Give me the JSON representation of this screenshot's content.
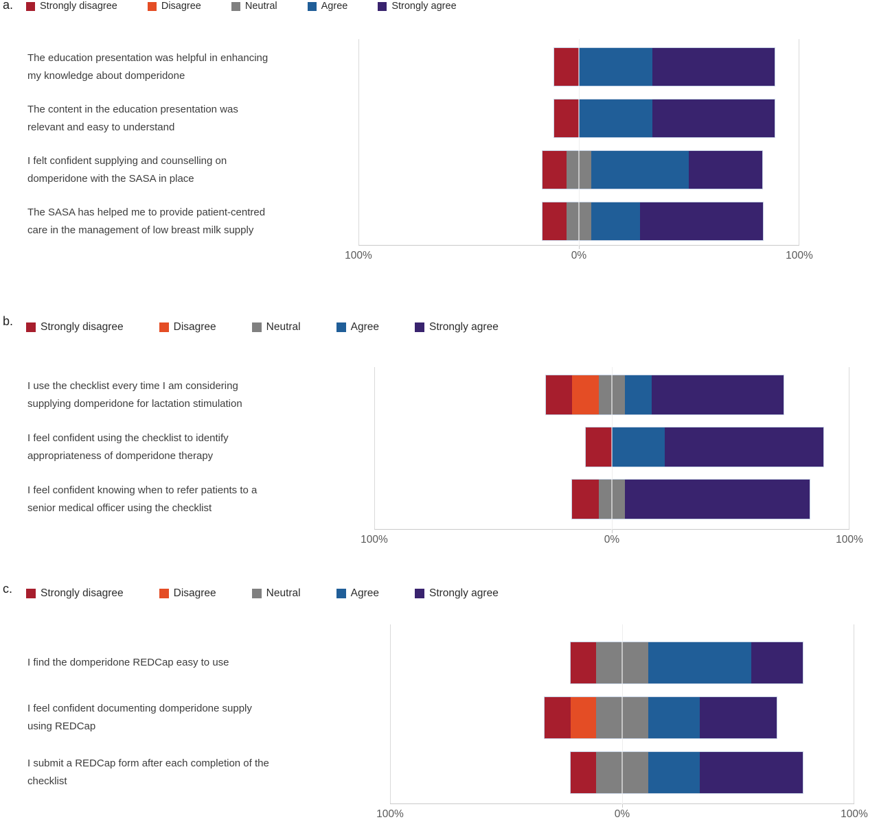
{
  "colors": {
    "strongly_disagree": "#A71E2D",
    "disagree": "#E44D25",
    "neutral": "#808080",
    "agree": "#205E98",
    "strongly_agree": "#39236E",
    "gridline": "#D9D9D9",
    "axis_line": "#C9C9C9",
    "axis_text": "#595959",
    "label_text": "#3D3D3D"
  },
  "chart_data": [
    {
      "type": "bar",
      "subtype": "diverging-stacked-likert",
      "panel_label": "a.",
      "legend": [
        "Strongly disagree",
        "Disagree",
        "Neutral",
        "Agree",
        "Strongly agree"
      ],
      "legend_position": "top",
      "axis_ticks": [
        "100%",
        "0%",
        "100%"
      ],
      "xlim": [
        -100,
        100
      ],
      "neutral_centered_on_zero": true,
      "categories": [
        "The education presentation was helpful in enhancing\nmy knowledge about domperidone",
        "The content in the education presentation was\nrelevant and easy to understand",
        "I felt confident supplying and counselling on\ndomperidone with the SASA in place",
        "The SASA has helped me to provide patient-centred\ncare in the management of low breast milk supply"
      ],
      "series": [
        {
          "name": "Strongly disagree",
          "values": [
            11.1,
            11.1,
            11.1,
            11.1
          ]
        },
        {
          "name": "Disagree",
          "values": [
            0,
            0,
            0,
            0
          ]
        },
        {
          "name": "Neutral",
          "values": [
            0,
            0,
            11.1,
            11.1
          ]
        },
        {
          "name": "Agree",
          "values": [
            33.3,
            33.3,
            44.4,
            22.2
          ]
        },
        {
          "name": "Strongly agree",
          "values": [
            55.6,
            55.6,
            33.3,
            55.6
          ]
        }
      ]
    },
    {
      "type": "bar",
      "subtype": "diverging-stacked-likert",
      "panel_label": "b.",
      "legend": [
        "Strongly disagree",
        "Disagree",
        "Neutral",
        "Agree",
        "Strongly agree"
      ],
      "legend_position": "top",
      "axis_ticks": [
        "100%",
        "0%",
        "100%"
      ],
      "xlim": [
        -100,
        100
      ],
      "neutral_centered_on_zero": true,
      "categories": [
        "I use the checklist every time I am considering\nsupplying domperidone for lactation stimulation",
        "I feel confident using the checklist to identify\nappropriateness of domperidone therapy",
        "I feel confident knowing when to refer patients to a\nsenior medical officer using the checklist"
      ],
      "series": [
        {
          "name": "Strongly disagree",
          "values": [
            11.1,
            11.1,
            11.1
          ]
        },
        {
          "name": "Disagree",
          "values": [
            11.1,
            0,
            0
          ]
        },
        {
          "name": "Neutral",
          "values": [
            11.1,
            0,
            11.1
          ]
        },
        {
          "name": "Agree",
          "values": [
            11.1,
            22.2,
            0
          ]
        },
        {
          "name": "Strongly agree",
          "values": [
            55.6,
            66.7,
            77.8
          ]
        }
      ]
    },
    {
      "type": "bar",
      "subtype": "diverging-stacked-likert",
      "panel_label": "c.",
      "legend": [
        "Strongly disagree",
        "Disagree",
        "Neutral",
        "Agree",
        "Strongly agree"
      ],
      "legend_position": "top",
      "axis_ticks": [
        "100%",
        "0%",
        "100%"
      ],
      "xlim": [
        -100,
        100
      ],
      "neutral_centered_on_zero": true,
      "categories": [
        "I find the domperidone REDCap easy to use",
        "I feel confident documenting domperidone supply\nusing REDCap",
        "I submit a REDCap form after each completion of the\nchecklist"
      ],
      "series": [
        {
          "name": "Strongly disagree",
          "values": [
            11.1,
            11.1,
            11.1
          ]
        },
        {
          "name": "Disagree",
          "values": [
            0,
            11.1,
            0
          ]
        },
        {
          "name": "Neutral",
          "values": [
            22.2,
            22.2,
            22.2
          ]
        },
        {
          "name": "Agree",
          "values": [
            44.4,
            22.2,
            22.2
          ]
        },
        {
          "name": "Strongly agree",
          "values": [
            22.2,
            33.3,
            44.4
          ]
        }
      ]
    }
  ]
}
